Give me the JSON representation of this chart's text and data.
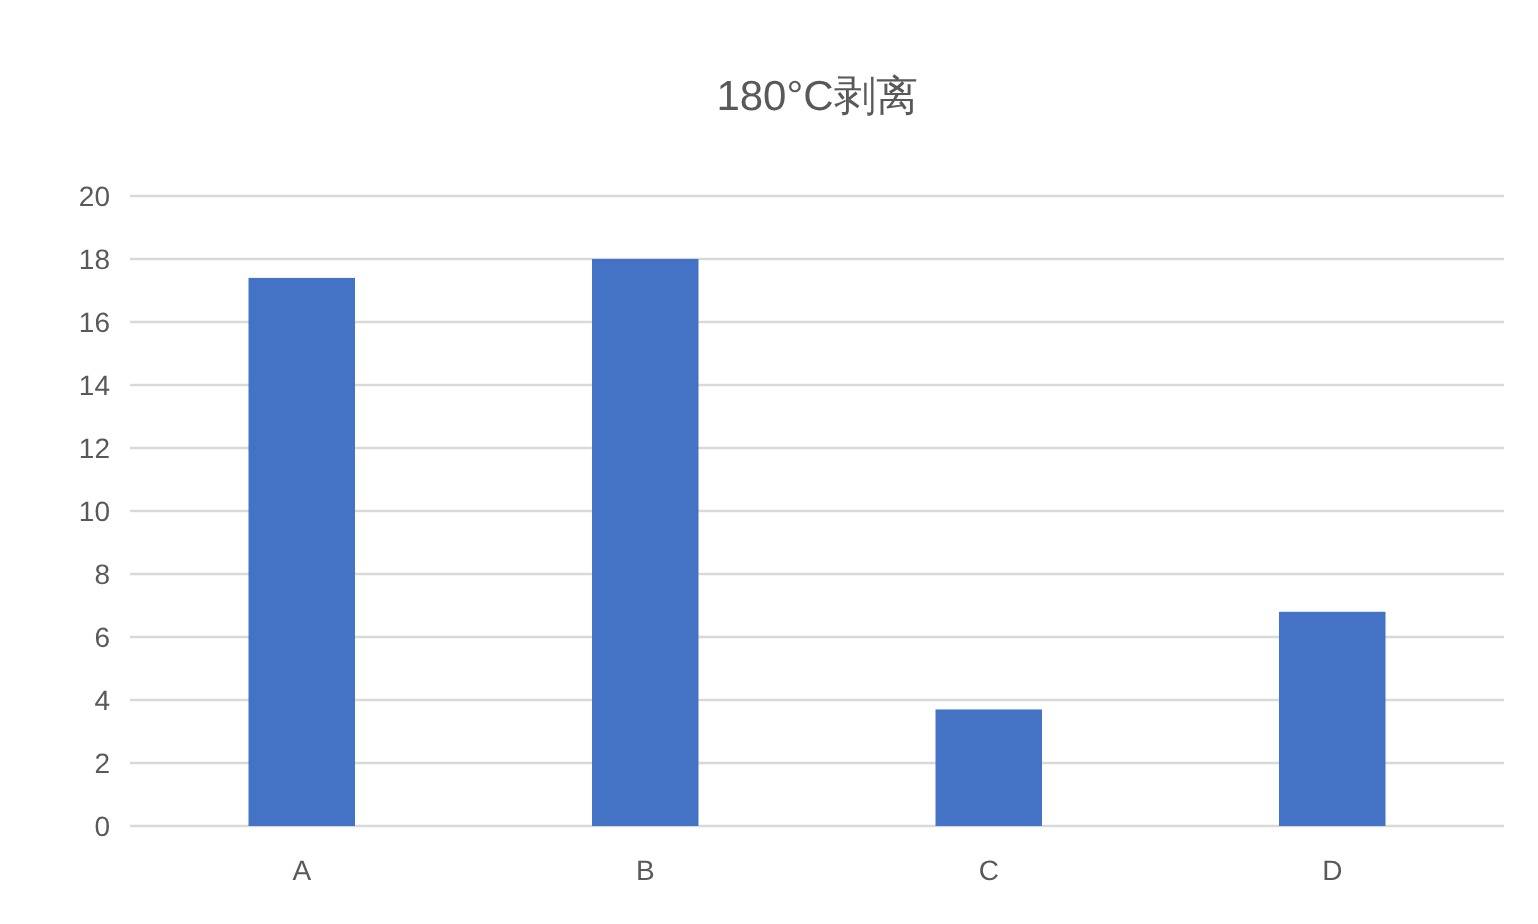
{
  "chart_data": {
    "type": "bar",
    "title": "180°C剥离",
    "categories": [
      "A",
      "B",
      "C",
      "D"
    ],
    "values": [
      17.4,
      18.0,
      3.7,
      6.8
    ],
    "color": "#4472c4",
    "ylim": [
      0,
      20
    ],
    "yticks": [
      0,
      2,
      4,
      6,
      8,
      10,
      12,
      14,
      16,
      18,
      20
    ],
    "grid": "y"
  }
}
